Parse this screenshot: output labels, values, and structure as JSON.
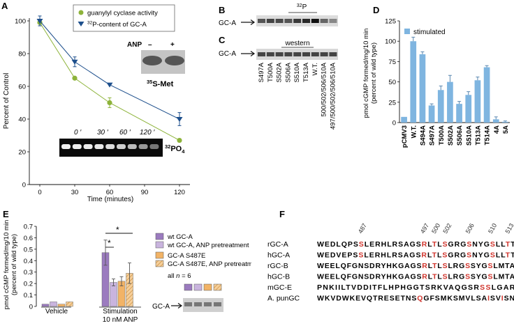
{
  "panels": {
    "A": {
      "letter": "A",
      "ylabel": "Percent of Control",
      "xlabel": "Time (minutes)",
      "yticks": [
        "0",
        "20",
        "40",
        "60",
        "80",
        "100"
      ],
      "xticks": [
        "0",
        "30",
        "60",
        "90",
        "120"
      ],
      "legend": [
        {
          "label": "guanylyl cyclase activity",
          "marker": "circle",
          "color": "#8db33a"
        },
        {
          "label_sup": "32",
          "label_rest": "P-content of GC-A",
          "marker": "triangle-down",
          "color": "#1d4f8c"
        }
      ],
      "inset_35S": {
        "anp_label": "ANP",
        "minus": "–",
        "plus": "+",
        "caption_sup": "35",
        "caption_rest": "S-Met"
      },
      "inset_32P": {
        "times": [
          "0 ′",
          "30 ′",
          "60 ′",
          "120 ′"
        ],
        "caption_sup": "32",
        "caption_main": "PO",
        "caption_sub": "4"
      }
    },
    "B": {
      "letter": "B",
      "gc_label": "GC-A",
      "header_sup": "32",
      "header_rest": "P"
    },
    "C": {
      "letter": "C",
      "gc_label": "GC-A",
      "header": "western",
      "lanes": [
        "S497A",
        "T500A",
        "S502A",
        "S506A",
        "S510A",
        "T513A",
        "W.T.",
        "500/502/506/510A",
        "497/500/502/506/510A"
      ]
    },
    "D": {
      "letter": "D",
      "ylabel_line1": "pmol cGMP formed/mg/10 min",
      "ylabel_line2": "(percent of wild type)",
      "yticks": [
        "0",
        "25",
        "50",
        "75",
        "100",
        "125"
      ],
      "legend": "stimulated",
      "color": "#7fb5e0"
    },
    "E": {
      "letter": "E",
      "ylabel_line1": "pmol cGMP formed/mg/10 min",
      "ylabel_line2": "(percent of wild type)",
      "yticks": [
        "0",
        "0.1",
        "0.2",
        "0.3",
        "0.4",
        "0.5",
        "0.6",
        "0.7"
      ],
      "group_labels": [
        "Vehicle",
        "Stimulation",
        "10 nM ANP"
      ],
      "star": "*",
      "legend": [
        {
          "label": "wt GC-A",
          "color": "#9b7bbf",
          "hatch": false
        },
        {
          "label": "wt GC-A, ANP pretreatment",
          "color": "#c9b4de",
          "hatch": false
        },
        {
          "label": "GC-A S487E",
          "color": "#f2b366",
          "hatch": false
        },
        {
          "label": "GC-A S487E, ANP pretreatment",
          "color": "#f6cf9a",
          "hatch": true
        }
      ],
      "n_label_prefix": "all ",
      "n_label_var": "n",
      "n_label_suffix": " = 6",
      "gc_label": "GC-A"
    },
    "F": {
      "letter": "F",
      "positions": [
        "487",
        "497",
        "500",
        "502",
        "506",
        "510",
        "513"
      ],
      "rows": [
        {
          "name": "rGC-A",
          "seq": "WEDLQPSSLERHLRSAGSRLTLSGRGSNYGSLLTTE",
          "red": [
            7,
            18,
            20,
            22,
            26,
            30,
            33
          ]
        },
        {
          "name": "hGC-A",
          "seq": "WEDVEPSSLERHLRSAGSRLTLSGRGSNYGSLLTTE",
          "red": [
            7,
            18,
            20,
            22,
            26,
            30,
            33
          ]
        },
        {
          "name": "rGC-B",
          "seq": "WEELQFGNSDRYHKGAGSRLTLSLRGSSYGSLMTAH",
          "red": [
            18,
            20,
            22,
            26,
            30
          ]
        },
        {
          "name": "hGC-B",
          "seq": "WEELQFGNSDRYHKGAGSRLTLSLRGSSYGSLMTAH",
          "red": [
            18,
            20,
            22,
            26,
            30
          ]
        },
        {
          "name": "mGC-E",
          "seq": "PNKIILTVDDITFLHPHGGTSRKVAQGSRSSLGARS",
          "red": [
            29,
            30,
            35
          ]
        },
        {
          "name": "A. punGC",
          "seq": "WKVDWKEVQTRESETNSQGFSMKSMVLSAISVISNA",
          "red": [
            17,
            29,
            32
          ]
        }
      ]
    }
  },
  "chart_data": [
    {
      "type": "line",
      "title": "",
      "xlabel": "Time (minutes)",
      "ylabel": "Percent of Control",
      "xlim": [
        0,
        120
      ],
      "ylim": [
        0,
        100
      ],
      "grid": false,
      "legend_position": "top-center",
      "series": [
        {
          "name": "guanylyl cyclase activity",
          "x": [
            0,
            30,
            60,
            120
          ],
          "y": [
            99,
            65,
            50,
            27
          ],
          "err": [
            2,
            0,
            3,
            0
          ],
          "color": "#8db33a",
          "marker": "circle"
        },
        {
          "name": "32P-content of GC-A",
          "x": [
            0,
            30,
            60,
            120
          ],
          "y": [
            100,
            75,
            61,
            40
          ],
          "err": [
            3,
            3,
            0,
            4
          ],
          "color": "#1d4f8c",
          "marker": "triangle-down"
        }
      ]
    },
    {
      "type": "bar",
      "title": "",
      "ylabel": "pmol cGMP formed/mg/10 min (percent of wild type)",
      "ylim": [
        0,
        125
      ],
      "legend_position": "top-left",
      "categories": [
        "pCMV3",
        "W.T.",
        "S494A",
        "S497A",
        "T500A",
        "S502A",
        "S506A",
        "S510A",
        "T513A",
        "T514A",
        "4A",
        "5A"
      ],
      "series": [
        {
          "name": "stimulated",
          "values": [
            7,
            100,
            84,
            21,
            40,
            50,
            23,
            34,
            52,
            68,
            4,
            1
          ],
          "err": [
            0,
            5,
            3,
            2,
            5,
            8,
            3,
            4,
            4,
            2,
            3,
            1
          ]
        }
      ]
    },
    {
      "type": "bar",
      "title": "",
      "ylabel": "pmol cGMP formed/mg/10 min (percent of wild type)",
      "ylim": [
        0,
        0.7
      ],
      "legend_position": "right",
      "categories": [
        "Vehicle",
        "Stimulation 10 nM ANP"
      ],
      "series": [
        {
          "name": "wt GC-A",
          "values": [
            0.02,
            0.47
          ],
          "err": [
            0.005,
            0.11
          ]
        },
        {
          "name": "wt GC-A, ANP pretreatment",
          "values": [
            0.04,
            0.21
          ],
          "err": [
            0.005,
            0.03
          ]
        },
        {
          "name": "GC-A S487E",
          "values": [
            0.02,
            0.22
          ],
          "err": [
            0.005,
            0.04
          ]
        },
        {
          "name": "GC-A S487E, ANP pretreatment",
          "values": [
            0.04,
            0.29
          ],
          "err": [
            0.005,
            0.09
          ]
        }
      ]
    }
  ]
}
